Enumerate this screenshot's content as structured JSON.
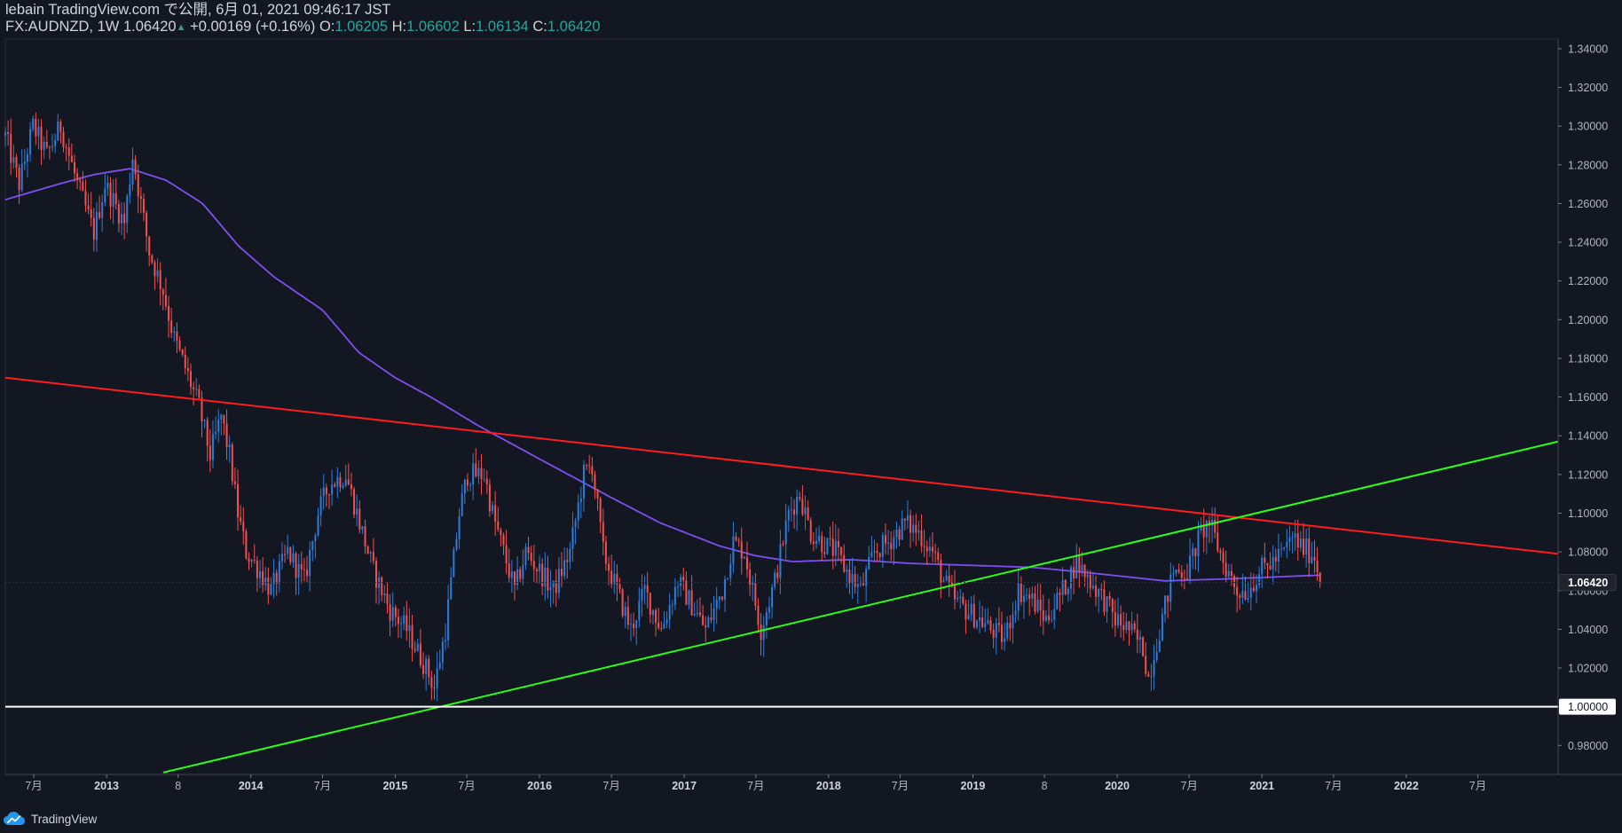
{
  "header": {
    "published_line": "lebain TradingView.com で公開, 6月 01, 2021 09:46:17 JST",
    "symbol": "FX:AUDNZD",
    "interval": "1W",
    "last": "1.06420",
    "change_arrow": "▲",
    "change": "+0.00169 (+0.16%)",
    "open_label": "O:",
    "open": "1.06205",
    "high_label": "H:",
    "high": "1.06602",
    "low_label": "L:",
    "low": "1.06134",
    "close_label": "C:",
    "close": "1.06420"
  },
  "footer": {
    "brand": "TradingView",
    "logo_icon": "tradingview-logo-icon"
  },
  "chart_data": {
    "type": "candlestick",
    "interval": "weekly",
    "y_range": [
      0.965,
      1.345
    ],
    "x_range": [
      "2012-04-20",
      "2023-01-20"
    ],
    "y_ticks": [
      "1.34000",
      "1.32000",
      "1.30000",
      "1.28000",
      "1.26000",
      "1.24000",
      "1.22000",
      "1.20000",
      "1.18000",
      "1.16000",
      "1.14000",
      "1.12000",
      "1.10000",
      "1.08000",
      "1.06000",
      "1.04000",
      "1.02000",
      "1.00000",
      "0.98000"
    ],
    "x_ticks": [
      {
        "date": "2012-07-01",
        "label": "7月"
      },
      {
        "date": "2013-01-01",
        "label": "2013"
      },
      {
        "date": "2013-07-01",
        "label": "8"
      },
      {
        "date": "2014-01-01",
        "label": "2014"
      },
      {
        "date": "2014-07-01",
        "label": "7月"
      },
      {
        "date": "2015-01-01",
        "label": "2015"
      },
      {
        "date": "2015-07-01",
        "label": "7月"
      },
      {
        "date": "2016-01-01",
        "label": "2016"
      },
      {
        "date": "2016-07-01",
        "label": "7月"
      },
      {
        "date": "2017-01-01",
        "label": "2017"
      },
      {
        "date": "2017-07-01",
        "label": "7月"
      },
      {
        "date": "2018-01-01",
        "label": "2018"
      },
      {
        "date": "2018-07-01",
        "label": "7月"
      },
      {
        "date": "2019-01-01",
        "label": "2019"
      },
      {
        "date": "2019-07-01",
        "label": "8"
      },
      {
        "date": "2020-01-01",
        "label": "2020"
      },
      {
        "date": "2020-07-01",
        "label": "7月"
      },
      {
        "date": "2021-01-01",
        "label": "2021"
      },
      {
        "date": "2021-07-01",
        "label": "7月"
      },
      {
        "date": "2022-01-01",
        "label": "2022"
      },
      {
        "date": "2022-07-01",
        "label": "7月"
      }
    ],
    "price_anchors": [
      [
        "2012-04-20",
        1.295
      ],
      [
        "2012-05-25",
        1.27
      ],
      [
        "2012-06-29",
        1.3
      ],
      [
        "2012-08-03",
        1.285
      ],
      [
        "2012-09-07",
        1.3
      ],
      [
        "2012-10-19",
        1.27
      ],
      [
        "2012-11-30",
        1.245
      ],
      [
        "2012-12-28",
        1.27
      ],
      [
        "2013-02-15",
        1.25
      ],
      [
        "2013-03-08",
        1.285
      ],
      [
        "2013-04-19",
        1.235
      ],
      [
        "2013-05-24",
        1.215
      ],
      [
        "2013-06-21",
        1.19
      ],
      [
        "2013-07-19",
        1.175
      ],
      [
        "2013-08-23",
        1.155
      ],
      [
        "2013-09-20",
        1.13
      ],
      [
        "2013-10-18",
        1.15
      ],
      [
        "2013-11-08",
        1.13
      ],
      [
        "2013-11-29",
        1.1
      ],
      [
        "2013-12-20",
        1.08
      ],
      [
        "2014-01-24",
        1.07
      ],
      [
        "2014-02-21",
        1.06
      ],
      [
        "2014-04-04",
        1.08
      ],
      [
        "2014-05-16",
        1.065
      ],
      [
        "2014-06-20",
        1.1
      ],
      [
        "2014-07-18",
        1.115
      ],
      [
        "2014-08-29",
        1.12
      ],
      [
        "2014-09-26",
        1.1
      ],
      [
        "2014-11-07",
        1.07
      ],
      [
        "2014-12-19",
        1.05
      ],
      [
        "2015-01-30",
        1.04
      ],
      [
        "2015-03-20",
        1.02
      ],
      [
        "2015-04-10",
        1.01
      ],
      [
        "2015-05-08",
        1.04
      ],
      [
        "2015-06-12",
        1.1
      ],
      [
        "2015-07-03",
        1.12
      ],
      [
        "2015-08-14",
        1.12
      ],
      [
        "2015-09-04",
        1.1
      ],
      [
        "2015-10-02",
        1.08
      ],
      [
        "2015-10-30",
        1.06
      ],
      [
        "2015-11-27",
        1.08
      ],
      [
        "2016-01-01",
        1.07
      ],
      [
        "2016-02-05",
        1.06
      ],
      [
        "2016-03-18",
        1.08
      ],
      [
        "2016-04-22",
        1.12
      ],
      [
        "2016-05-13",
        1.125
      ],
      [
        "2016-06-10",
        1.08
      ],
      [
        "2016-07-15",
        1.06
      ],
      [
        "2016-08-19",
        1.04
      ],
      [
        "2016-09-23",
        1.06
      ],
      [
        "2016-11-04",
        1.04
      ],
      [
        "2016-12-16",
        1.065
      ],
      [
        "2017-01-27",
        1.05
      ],
      [
        "2017-02-24",
        1.04
      ],
      [
        "2017-04-07",
        1.06
      ],
      [
        "2017-05-05",
        1.085
      ],
      [
        "2017-06-02",
        1.08
      ],
      [
        "2017-07-14",
        1.04
      ],
      [
        "2017-08-18",
        1.065
      ],
      [
        "2017-09-22",
        1.1
      ],
      [
        "2017-10-20",
        1.11
      ],
      [
        "2017-11-17",
        1.09
      ],
      [
        "2017-12-15",
        1.085
      ],
      [
        "2018-01-19",
        1.08
      ],
      [
        "2018-02-16",
        1.07
      ],
      [
        "2018-03-23",
        1.06
      ],
      [
        "2018-04-27",
        1.08
      ],
      [
        "2018-06-01",
        1.085
      ],
      [
        "2018-07-13",
        1.095
      ],
      [
        "2018-08-17",
        1.09
      ],
      [
        "2018-09-21",
        1.08
      ],
      [
        "2018-10-19",
        1.065
      ],
      [
        "2018-11-16",
        1.055
      ],
      [
        "2018-12-14",
        1.05
      ],
      [
        "2019-01-18",
        1.045
      ],
      [
        "2019-02-15",
        1.04
      ],
      [
        "2019-03-22",
        1.035
      ],
      [
        "2019-04-26",
        1.06
      ],
      [
        "2019-05-31",
        1.055
      ],
      [
        "2019-07-05",
        1.045
      ],
      [
        "2019-08-16",
        1.06
      ],
      [
        "2019-09-20",
        1.075
      ],
      [
        "2019-10-25",
        1.065
      ],
      [
        "2019-11-29",
        1.055
      ],
      [
        "2019-12-27",
        1.045
      ],
      [
        "2020-01-31",
        1.04
      ],
      [
        "2020-03-06",
        1.03
      ],
      [
        "2020-03-20",
        1.015
      ],
      [
        "2020-04-17",
        1.04
      ],
      [
        "2020-05-22",
        1.07
      ],
      [
        "2020-06-26",
        1.07
      ],
      [
        "2020-07-31",
        1.09
      ],
      [
        "2020-08-21",
        1.095
      ],
      [
        "2020-09-25",
        1.075
      ],
      [
        "2020-10-30",
        1.06
      ],
      [
        "2020-11-27",
        1.06
      ],
      [
        "2020-12-25",
        1.07
      ],
      [
        "2021-01-29",
        1.075
      ],
      [
        "2021-02-26",
        1.08
      ],
      [
        "2021-03-19",
        1.088
      ],
      [
        "2021-04-09",
        1.083
      ],
      [
        "2021-05-14",
        1.078
      ],
      [
        "2021-05-28",
        1.0642
      ]
    ],
    "moving_average": {
      "color": "#7e4ff0",
      "points": [
        [
          "2012-04-20",
          1.262
        ],
        [
          "2012-09-01",
          1.27
        ],
        [
          "2012-12-01",
          1.275
        ],
        [
          "2013-03-01",
          1.278
        ],
        [
          "2013-06-01",
          1.272
        ],
        [
          "2013-09-01",
          1.26
        ],
        [
          "2013-12-01",
          1.238
        ],
        [
          "2014-03-01",
          1.222
        ],
        [
          "2014-07-01",
          1.205
        ],
        [
          "2014-10-01",
          1.183
        ],
        [
          "2015-01-01",
          1.17
        ],
        [
          "2015-04-01",
          1.16
        ],
        [
          "2015-08-01",
          1.145
        ],
        [
          "2016-01-01",
          1.128
        ],
        [
          "2016-07-01",
          1.108
        ],
        [
          "2016-11-01",
          1.095
        ],
        [
          "2017-04-01",
          1.083
        ],
        [
          "2017-07-01",
          1.078
        ],
        [
          "2017-10-01",
          1.075
        ],
        [
          "2018-03-01",
          1.076
        ],
        [
          "2018-08-01",
          1.074
        ],
        [
          "2019-01-01",
          1.073
        ],
        [
          "2019-06-01",
          1.072
        ],
        [
          "2019-11-01",
          1.069
        ],
        [
          "2020-05-01",
          1.065
        ],
        [
          "2020-10-01",
          1.066
        ],
        [
          "2021-05-28",
          1.068
        ]
      ]
    },
    "trendlines": [
      {
        "name": "resistance",
        "color": "#ff1c1c",
        "from": [
          "2012-04-20",
          1.17
        ],
        "to": [
          "2023-01-20",
          1.079
        ]
      },
      {
        "name": "support",
        "color": "#2bff14",
        "from": [
          "2013-05-24",
          0.966
        ],
        "to": [
          "2023-01-20",
          1.137
        ]
      }
    ],
    "horizontal_line": {
      "value": 1.0,
      "color": "#ffffff",
      "label": "1.00000"
    },
    "last_price": {
      "value": 1.0642,
      "label": "1.06420"
    },
    "colors": {
      "background": "#131722",
      "up": "#2e7cda",
      "down": "#f3504e"
    }
  }
}
